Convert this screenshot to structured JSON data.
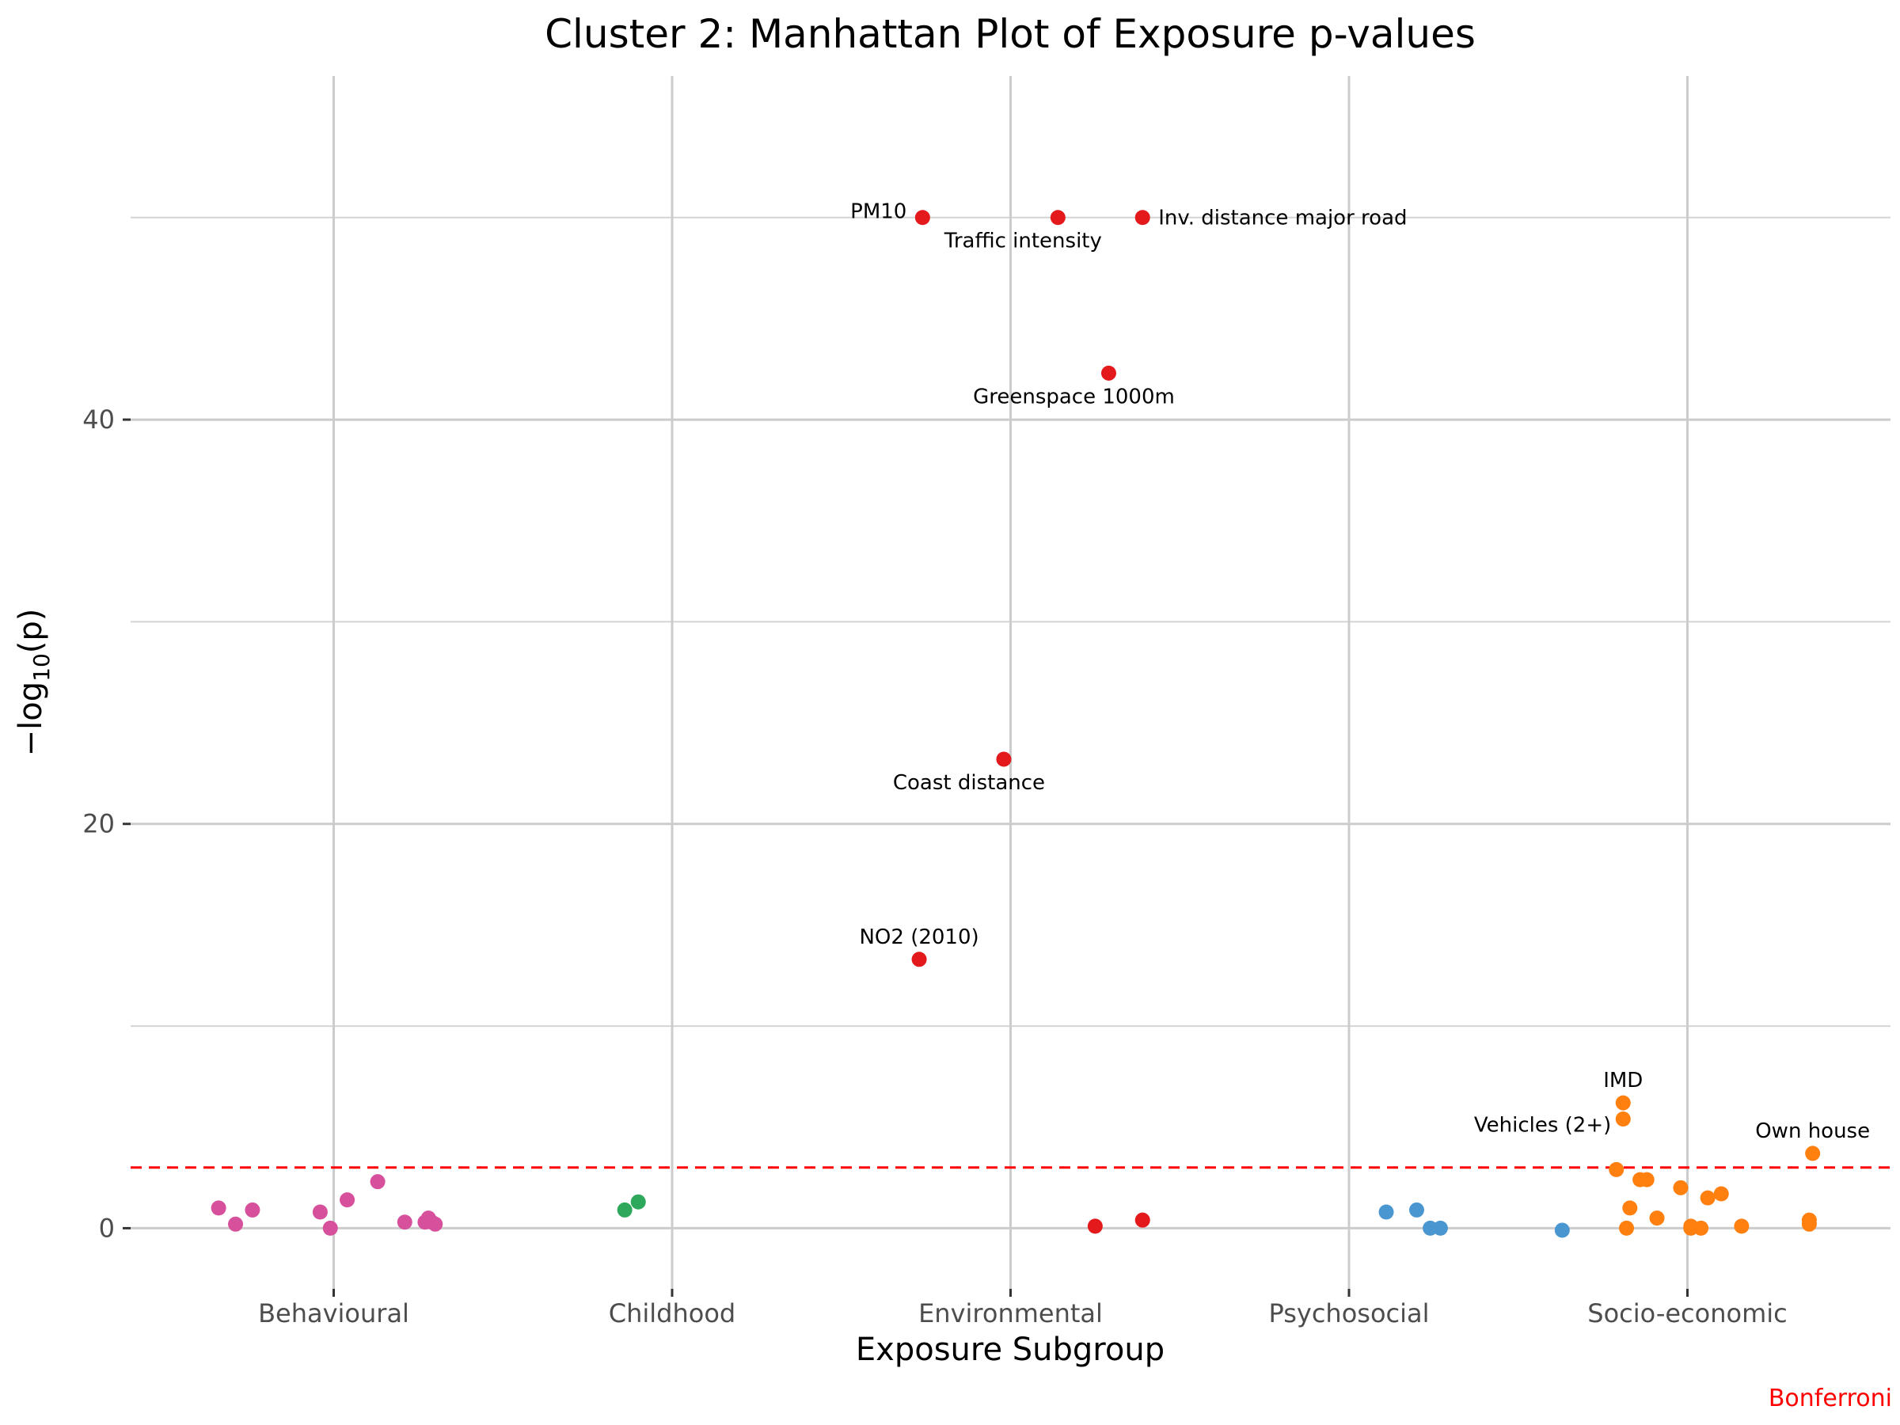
{
  "chart_data": {
    "type": "scatter",
    "title": "Cluster 2: Manhattan Plot of Exposure p-values",
    "xlabel": "Exposure Subgroup",
    "ylabel_prefix": "−log",
    "ylabel_sub": "10",
    "ylabel_suffix": "(p)",
    "caption": "Bonferroni",
    "categories": [
      "Behavioural",
      "Childhood",
      "Environmental",
      "Psychosocial",
      "Socio-economic"
    ],
    "x_range": [
      0.4,
      5.6
    ],
    "ylim": [
      -3,
      57
    ],
    "y_ticks": [
      0,
      20,
      40
    ],
    "y_minor_gridlines": [
      10,
      30,
      50
    ],
    "grid": true,
    "threshold": {
      "y": 3.0,
      "color": "#ff0000",
      "style": "dashed"
    },
    "series": [
      {
        "color": "#d6509b",
        "points": [
          {
            "x": 0.66,
            "y": 1.0
          },
          {
            "x": 0.71,
            "y": 0.2
          },
          {
            "x": 0.76,
            "y": 0.9
          },
          {
            "x": 0.96,
            "y": 0.8
          },
          {
            "x": 0.99,
            "y": 0.0
          },
          {
            "x": 1.04,
            "y": 1.4
          },
          {
            "x": 1.13,
            "y": 2.3
          },
          {
            "x": 1.21,
            "y": 0.3
          },
          {
            "x": 1.27,
            "y": 0.3
          },
          {
            "x": 1.28,
            "y": 0.5
          },
          {
            "x": 1.29,
            "y": 0.3
          },
          {
            "x": 1.3,
            "y": 0.2
          }
        ]
      },
      {
        "color": "#2ea85a",
        "points": [
          {
            "x": 1.86,
            "y": 0.9
          },
          {
            "x": 1.9,
            "y": 1.3
          }
        ]
      },
      {
        "color": "#e3191c",
        "points": [
          {
            "x": 2.74,
            "y": 50.0,
            "label": "PM10",
            "label_pos": "left"
          },
          {
            "x": 3.14,
            "y": 50.0,
            "label": "Traffic intensity",
            "label_pos": "below-left"
          },
          {
            "x": 3.39,
            "y": 50.0,
            "label": "Inv. distance major road",
            "label_pos": "right"
          },
          {
            "x": 3.29,
            "y": 42.3,
            "label": "Greenspace 1000m",
            "label_pos": "below-left"
          },
          {
            "x": 2.98,
            "y": 23.2,
            "label": "Coast distance",
            "label_pos": "below-left"
          },
          {
            "x": 2.73,
            "y": 13.3,
            "label": "NO2 (2010)",
            "label_pos": "above"
          },
          {
            "x": 3.25,
            "y": 0.1
          },
          {
            "x": 3.39,
            "y": 0.4
          }
        ]
      },
      {
        "color": "#4a96d1",
        "points": [
          {
            "x": 4.11,
            "y": 0.8
          },
          {
            "x": 4.2,
            "y": 0.9
          },
          {
            "x": 4.24,
            "y": 0.0
          },
          {
            "x": 4.27,
            "y": 0.0
          },
          {
            "x": 4.63,
            "y": -0.1
          }
        ]
      },
      {
        "color": "#ff7f0f",
        "points": [
          {
            "x": 4.81,
            "y": 6.2,
            "label": "IMD",
            "label_pos": "above"
          },
          {
            "x": 4.81,
            "y": 5.4,
            "label": "Vehicles (2+)",
            "label_pos": "above-left"
          },
          {
            "x": 5.37,
            "y": 3.7,
            "label": "Own house",
            "label_pos": "above"
          },
          {
            "x": 4.79,
            "y": 2.9
          },
          {
            "x": 4.86,
            "y": 2.4
          },
          {
            "x": 4.88,
            "y": 2.4
          },
          {
            "x": 4.83,
            "y": 1.0
          },
          {
            "x": 4.82,
            "y": 0.0
          },
          {
            "x": 4.91,
            "y": 0.5
          },
          {
            "x": 4.98,
            "y": 2.0
          },
          {
            "x": 5.01,
            "y": 0.0
          },
          {
            "x": 5.06,
            "y": 1.5
          },
          {
            "x": 5.1,
            "y": 1.7
          },
          {
            "x": 5.01,
            "y": 0.1
          },
          {
            "x": 5.04,
            "y": 0.0
          },
          {
            "x": 5.16,
            "y": 0.1
          },
          {
            "x": 5.36,
            "y": 0.4
          },
          {
            "x": 5.36,
            "y": 0.2
          }
        ]
      }
    ]
  }
}
